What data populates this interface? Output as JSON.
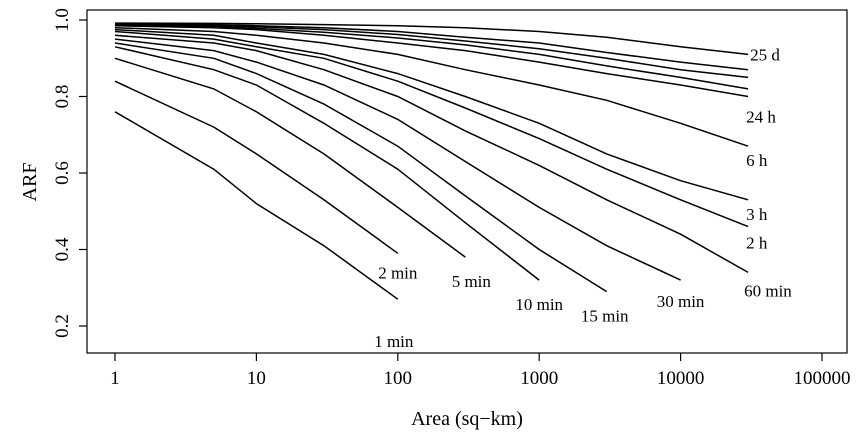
{
  "chart_data": {
    "type": "line",
    "xlabel": "Area (sq−km)",
    "ylabel": "ARF",
    "xscale": "log",
    "xlim": [
      1,
      100000
    ],
    "ylim": [
      0.15,
      1.02
    ],
    "grid": false,
    "x_ticks": [
      1,
      10,
      100,
      1000,
      10000,
      100000
    ],
    "x_tick_labels": [
      "1",
      "10",
      "100",
      "1000",
      "10000",
      "100000"
    ],
    "y_ticks": [
      0.2,
      0.4,
      0.6,
      0.8,
      1.0
    ],
    "y_tick_labels": [
      "0.2",
      "0.4",
      "0.6",
      "0.8",
      "1.0"
    ],
    "series": [
      {
        "name": "1 min",
        "x": [
          1,
          5,
          10,
          30,
          100
        ],
        "y": [
          0.76,
          0.61,
          0.52,
          0.41,
          0.27
        ]
      },
      {
        "name": "2 min",
        "x": [
          1,
          5,
          10,
          30,
          100
        ],
        "y": [
          0.84,
          0.72,
          0.65,
          0.53,
          0.39
        ]
      },
      {
        "name": "5 min",
        "x": [
          1,
          5,
          10,
          30,
          100,
          300
        ],
        "y": [
          0.9,
          0.82,
          0.76,
          0.65,
          0.51,
          0.38
        ]
      },
      {
        "name": "10 min",
        "x": [
          1,
          5,
          10,
          30,
          100,
          300,
          1000
        ],
        "y": [
          0.93,
          0.87,
          0.83,
          0.73,
          0.61,
          0.47,
          0.32
        ]
      },
      {
        "name": "15 min",
        "x": [
          1,
          5,
          10,
          30,
          100,
          300,
          1000,
          3000
        ],
        "y": [
          0.94,
          0.9,
          0.86,
          0.78,
          0.67,
          0.54,
          0.4,
          0.29
        ]
      },
      {
        "name": "30 min",
        "x": [
          1,
          5,
          10,
          30,
          100,
          300,
          1000,
          3000,
          10000
        ],
        "y": [
          0.95,
          0.92,
          0.89,
          0.83,
          0.74,
          0.63,
          0.51,
          0.41,
          0.32
        ]
      },
      {
        "name": "60 min",
        "x": [
          1,
          5,
          10,
          30,
          100,
          300,
          1000,
          3000,
          10000,
          30000
        ],
        "y": [
          0.96,
          0.94,
          0.92,
          0.87,
          0.8,
          0.71,
          0.62,
          0.53,
          0.44,
          0.34
        ]
      },
      {
        "name": "2 h",
        "x": [
          1,
          5,
          10,
          30,
          100,
          300,
          1000,
          3000,
          10000,
          30000
        ],
        "y": [
          0.97,
          0.95,
          0.93,
          0.9,
          0.84,
          0.77,
          0.69,
          0.61,
          0.53,
          0.46
        ]
      },
      {
        "name": "3 h",
        "x": [
          1,
          5,
          10,
          30,
          100,
          300,
          1000,
          3000,
          10000,
          30000
        ],
        "y": [
          0.975,
          0.96,
          0.94,
          0.91,
          0.86,
          0.8,
          0.73,
          0.65,
          0.58,
          0.53
        ]
      },
      {
        "name": "6 h",
        "x": [
          1,
          5,
          10,
          30,
          100,
          300,
          1000,
          3000,
          10000,
          30000
        ],
        "y": [
          0.98,
          0.97,
          0.96,
          0.94,
          0.91,
          0.87,
          0.83,
          0.79,
          0.73,
          0.67
        ]
      },
      {
        "name": "24 h",
        "x": [
          1,
          5,
          10,
          30,
          100,
          300,
          1000,
          3000,
          10000,
          30000
        ],
        "y": [
          0.985,
          0.98,
          0.975,
          0.96,
          0.94,
          0.92,
          0.89,
          0.86,
          0.83,
          0.8
        ]
      },
      {
        "name": "",
        "x": [
          1,
          5,
          10,
          30,
          100,
          300,
          1000,
          3000,
          10000,
          30000
        ],
        "y": [
          0.987,
          0.983,
          0.978,
          0.968,
          0.953,
          0.935,
          0.91,
          0.88,
          0.85,
          0.82
        ]
      },
      {
        "name": "",
        "x": [
          1,
          5,
          10,
          30,
          100,
          300,
          1000,
          3000,
          10000,
          30000
        ],
        "y": [
          0.989,
          0.986,
          0.982,
          0.975,
          0.962,
          0.945,
          0.925,
          0.9,
          0.87,
          0.85
        ]
      },
      {
        "name": "",
        "x": [
          1,
          5,
          10,
          30,
          100,
          300,
          1000,
          3000,
          10000,
          30000
        ],
        "y": [
          0.99,
          0.988,
          0.985,
          0.98,
          0.97,
          0.955,
          0.94,
          0.915,
          0.89,
          0.87
        ]
      },
      {
        "name": "25 d",
        "x": [
          1,
          5,
          10,
          30,
          100,
          300,
          1000,
          3000,
          10000,
          30000
        ],
        "y": [
          0.992,
          0.991,
          0.99,
          0.988,
          0.985,
          0.98,
          0.97,
          0.955,
          0.93,
          0.91
        ]
      }
    ]
  }
}
